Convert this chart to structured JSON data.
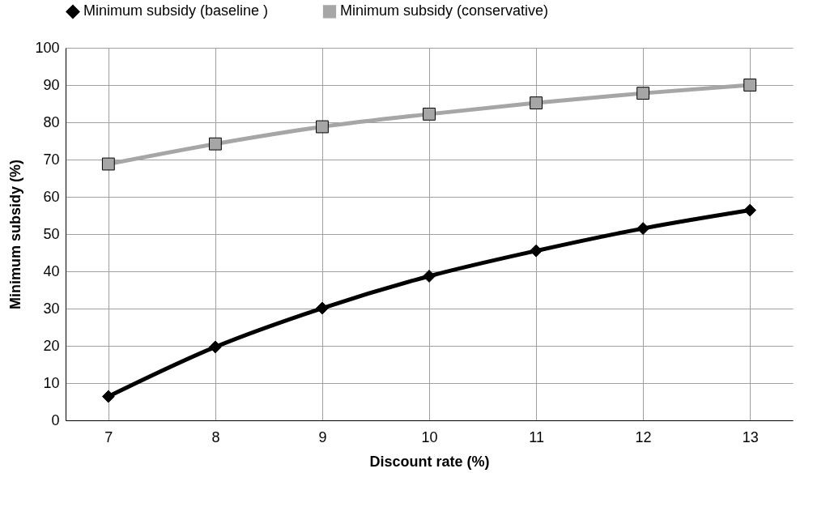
{
  "chart_data": {
    "type": "line",
    "xlabel": "Discount rate (%)",
    "ylabel": "Minimum subsidy (%)",
    "x": [
      7,
      8,
      9,
      10,
      11,
      12,
      13
    ],
    "series": [
      {
        "name": "Minimum subsidy (baseline )",
        "color": "#000000",
        "marker": "diamond",
        "values": [
          6.4,
          19.7,
          30.1,
          38.7,
          45.5,
          51.5,
          56.4
        ]
      },
      {
        "name": "Minimum subsidy (conservative)",
        "color": "#a6a6a6",
        "marker": "square",
        "values": [
          68.8,
          74.2,
          78.8,
          82.2,
          85.2,
          87.8,
          90.0
        ]
      }
    ],
    "xlim": [
      6.6,
      13.4
    ],
    "xticks": [
      7,
      8,
      9,
      10,
      11,
      12,
      13
    ],
    "ylim": [
      0,
      100
    ],
    "yticks": [
      0,
      10,
      20,
      30,
      40,
      50,
      60,
      70,
      80,
      90,
      100
    ],
    "grid": true,
    "legend": "top",
    "line_style": "solid"
  }
}
